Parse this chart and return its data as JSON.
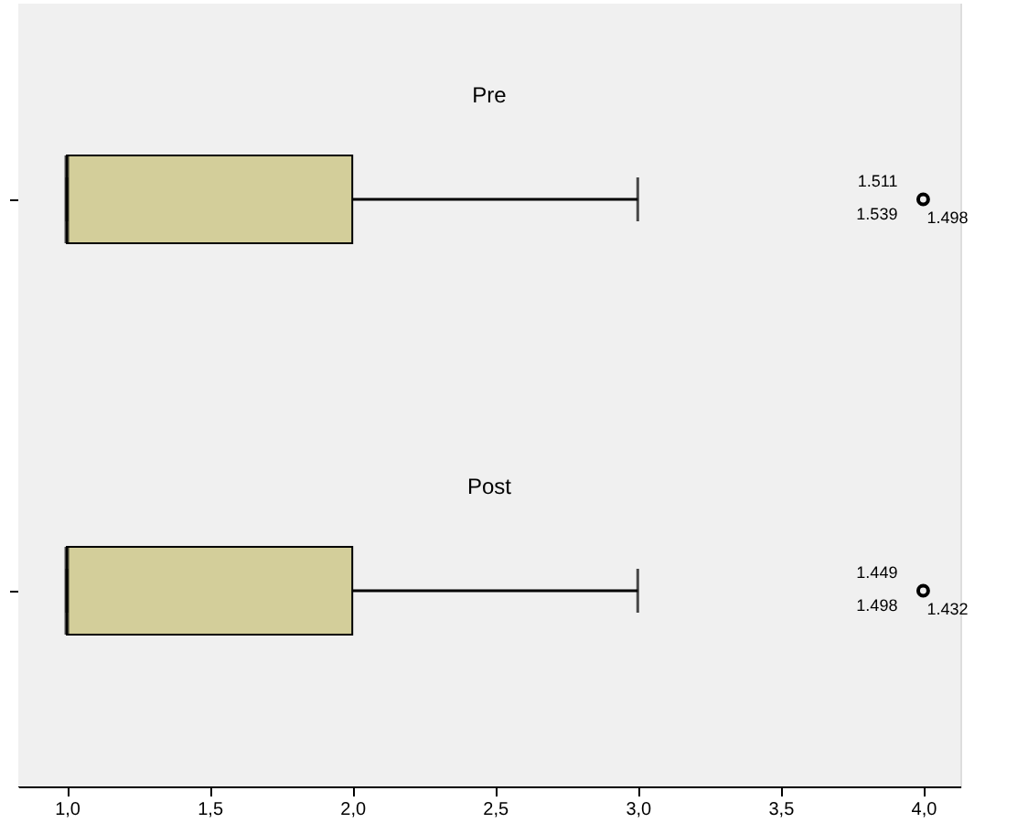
{
  "chart_data": {
    "type": "box",
    "orientation": "horizontal",
    "categories": [
      "Pre",
      "Post"
    ],
    "boxes": [
      {
        "low": 1,
        "q1": 1,
        "median": 1,
        "q3": 2,
        "high": 3,
        "outliers": [
          4
        ]
      },
      {
        "low": 1,
        "q1": 1,
        "median": 1,
        "q3": 2,
        "high": 3,
        "outliers": [
          4
        ]
      }
    ],
    "colors": [
      "#d3ce9a",
      "#d3ce9a"
    ],
    "xlim": [
      0.83,
      4.13
    ],
    "xticks": [
      {
        "value": 1,
        "label": "1,0"
      },
      {
        "value": 1.5,
        "label": "1,5"
      },
      {
        "value": 2,
        "label": "2,0"
      },
      {
        "value": 2.5,
        "label": "2,5"
      },
      {
        "value": 3,
        "label": "3,0"
      },
      {
        "value": 3.5,
        "label": "3,5"
      },
      {
        "value": 4,
        "label": "4,0"
      }
    ],
    "tick_labels": "x",
    "marker": "circle",
    "annotations": [
      "1.511",
      "1.539",
      "1.498",
      "1.449",
      "1.498",
      "1.432"
    ]
  }
}
